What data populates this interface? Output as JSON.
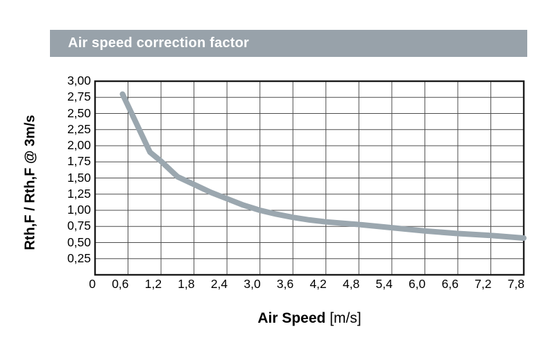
{
  "header": {
    "title": "Air speed correction factor"
  },
  "colors": {
    "header_bg": "#98A2AA",
    "header_text": "#FFFFFF",
    "curve": "#9BA7AF",
    "grid": "#4D4D4D",
    "frame": "#1A1A1A",
    "text": "#000000"
  },
  "chart_data": {
    "type": "line",
    "title": "Air speed correction factor",
    "xlabel": "Air Speed",
    "xunit": "[m/s]",
    "ylabel": "Rth,F / Rth,F @ 3m/s",
    "xlim": [
      0,
      7.8
    ],
    "ylim": [
      0,
      3
    ],
    "x_grid_step": 0.6,
    "y_grid_step": 0.25,
    "grid": true,
    "legend": "none",
    "decimal_separator": ",",
    "xticks": [
      {
        "value": 0.0,
        "label": "0"
      },
      {
        "value": 0.6,
        "label": "0,6"
      },
      {
        "value": 1.2,
        "label": "1,2"
      },
      {
        "value": 1.8,
        "label": "1,8"
      },
      {
        "value": 2.4,
        "label": "2,4"
      },
      {
        "value": 3.0,
        "label": "3,0"
      },
      {
        "value": 3.6,
        "label": "3,6"
      },
      {
        "value": 4.2,
        "label": "4,2"
      },
      {
        "value": 4.8,
        "label": "4,8"
      },
      {
        "value": 5.4,
        "label": "5,4"
      },
      {
        "value": 6.0,
        "label": "6,0"
      },
      {
        "value": 6.6,
        "label": "6,6"
      },
      {
        "value": 7.2,
        "label": "7,2"
      },
      {
        "value": 7.8,
        "label": "7,8"
      }
    ],
    "yticks": [
      {
        "value": 3.0,
        "label": "3,00"
      },
      {
        "value": 2.75,
        "label": "2,75"
      },
      {
        "value": 2.5,
        "label": "2,50"
      },
      {
        "value": 2.25,
        "label": "2,25"
      },
      {
        "value": 2.0,
        "label": "2,00"
      },
      {
        "value": 1.75,
        "label": "1,75"
      },
      {
        "value": 1.5,
        "label": "1,50"
      },
      {
        "value": 1.25,
        "label": "1,25"
      },
      {
        "value": 1.0,
        "label": "1,00"
      },
      {
        "value": 0.75,
        "label": "0,75"
      },
      {
        "value": 0.5,
        "label": "0,50"
      },
      {
        "value": 0.25,
        "label": "0,25"
      }
    ],
    "points": [
      [
        0.5,
        2.8
      ],
      [
        1.0,
        1.9
      ],
      [
        1.2,
        1.76
      ],
      [
        1.5,
        1.52
      ],
      [
        1.8,
        1.4
      ],
      [
        2.1,
        1.28
      ],
      [
        2.4,
        1.18
      ],
      [
        2.7,
        1.08
      ],
      [
        3.0,
        1.0
      ],
      [
        3.3,
        0.94
      ],
      [
        3.6,
        0.89
      ],
      [
        3.9,
        0.85
      ],
      [
        4.2,
        0.82
      ],
      [
        4.8,
        0.78
      ],
      [
        5.4,
        0.73
      ],
      [
        6.0,
        0.68
      ],
      [
        6.6,
        0.64
      ],
      [
        7.2,
        0.61
      ],
      [
        7.8,
        0.57
      ]
    ]
  }
}
